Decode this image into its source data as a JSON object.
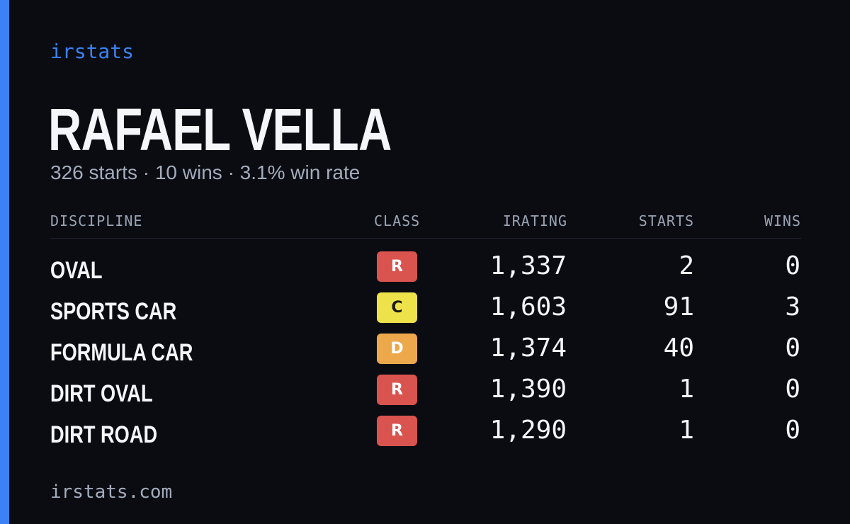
{
  "brand": "irstats",
  "driver": {
    "name": "RAFAEL VELLA",
    "starts_text": "326 starts",
    "wins_text": "10 wins",
    "winrate_text": "3.1% win rate",
    "separator": "·"
  },
  "table": {
    "headers": {
      "discipline": "DISCIPLINE",
      "class": "CLASS",
      "irating": "IRATING",
      "starts": "STARTS",
      "wins": "WINS"
    },
    "rows": [
      {
        "discipline": "OVAL",
        "class": "R",
        "class_color": "#d9534f",
        "class_text_color": "#ffffff",
        "irating": "1,337",
        "starts": "2",
        "wins": "0"
      },
      {
        "discipline": "SPORTS CAR",
        "class": "C",
        "class_color": "#ede24a",
        "class_text_color": "#1a1a1a",
        "irating": "1,603",
        "starts": "91",
        "wins": "3"
      },
      {
        "discipline": "FORMULA CAR",
        "class": "D",
        "class_color": "#eda84c",
        "class_text_color": "#ffffff",
        "irating": "1,374",
        "starts": "40",
        "wins": "0"
      },
      {
        "discipline": "DIRT OVAL",
        "class": "R",
        "class_color": "#d9534f",
        "class_text_color": "#ffffff",
        "irating": "1,390",
        "starts": "1",
        "wins": "0"
      },
      {
        "discipline": "DIRT ROAD",
        "class": "R",
        "class_color": "#d9534f",
        "class_text_color": "#ffffff",
        "irating": "1,290",
        "starts": "1",
        "wins": "0"
      }
    ]
  },
  "footer": "irstats.com",
  "colors": {
    "accent": "#3b82f6",
    "background": "#0a0c12",
    "muted_text": "#a3acbc",
    "primary_text": "#f5f6fa"
  }
}
